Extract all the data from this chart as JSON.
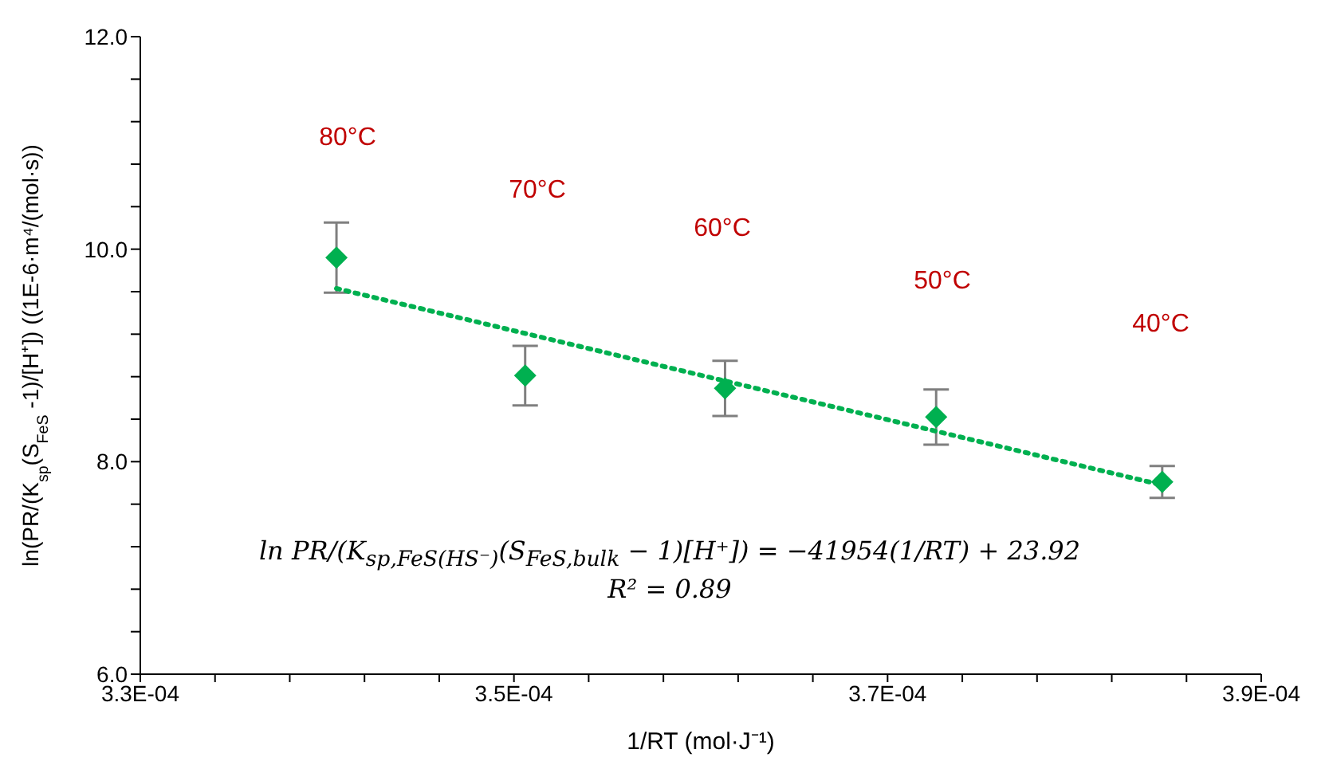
{
  "chart_data": {
    "type": "scatter",
    "xlabel": "1/RT (mol·J⁻¹)",
    "ylabel": "ln(PR/(K$_{sp}$(S$_{FeS}$ -1)/[H⁺]) ((1E-6·m⁴/(mol·s))",
    "x": [
      0.0003405,
      0.0003506,
      0.0003613,
      0.0003726,
      0.0003847
    ],
    "series": [
      {
        "color": "#00b050",
        "values": [
          9.92,
          8.81,
          8.69,
          8.42,
          7.81
        ],
        "errors": [
          0.33,
          0.28,
          0.26,
          0.26,
          0.15
        ],
        "marker": "diamond"
      },
      {
        "type": "line",
        "color": "#00b050",
        "x": [
          0.0003405,
          0.0003847
        ],
        "values": [
          9.63,
          7.78
        ],
        "line_style": "dotted",
        "marker": "none"
      }
    ],
    "xlim": [
      0.00033,
      0.00039
    ],
    "xticks": [
      {
        "value": 0.00033,
        "label": "3.3E-04"
      },
      {
        "value": 0.000334,
        "label": null
      },
      {
        "value": 0.000338,
        "label": null
      },
      {
        "value": 0.000342,
        "label": null
      },
      {
        "value": 0.000346,
        "label": null
      },
      {
        "value": 0.00035,
        "label": "3.5E-04"
      },
      {
        "value": 0.000354,
        "label": null
      },
      {
        "value": 0.000358,
        "label": null
      },
      {
        "value": 0.000362,
        "label": null
      },
      {
        "value": 0.000366,
        "label": null
      },
      {
        "value": 0.00037,
        "label": "3.7E-04"
      },
      {
        "value": 0.000374,
        "label": null
      },
      {
        "value": 0.000378,
        "label": null
      },
      {
        "value": 0.000382,
        "label": null
      },
      {
        "value": 0.000386,
        "label": null
      },
      {
        "value": 0.00039,
        "label": "3.9E-04"
      }
    ],
    "ylim": [
      6,
      12
    ],
    "yticks": [
      {
        "value": 6,
        "label": "6.0"
      },
      {
        "value": 6.4,
        "label": null
      },
      {
        "value": 6.8,
        "label": null
      },
      {
        "value": 7.2,
        "label": null
      },
      {
        "value": 7.6,
        "label": null
      },
      {
        "value": 8,
        "label": "8.0"
      },
      {
        "value": 8.4,
        "label": null
      },
      {
        "value": 8.8,
        "label": null
      },
      {
        "value": 9.2,
        "label": null
      },
      {
        "value": 9.6,
        "label": null
      },
      {
        "value": 10,
        "label": "10.0"
      },
      {
        "value": 10.4,
        "label": null
      },
      {
        "value": 10.8,
        "label": null
      },
      {
        "value": 11.2,
        "label": null
      },
      {
        "value": 11.6,
        "label": null
      },
      {
        "value": 12,
        "label": "12.0"
      }
    ],
    "grid": false,
    "legend": false,
    "annotations": [
      "80°C",
      "70°C",
      "60°C",
      "50°C",
      "40°C",
      "ln PR/(K$_{sp,FeS(HS⁻)}$(S$_{FeS,bulk}$ − 1)[H⁺]) = −41954(1/RT) + 23.92",
      "R² = 0.89"
    ]
  }
}
